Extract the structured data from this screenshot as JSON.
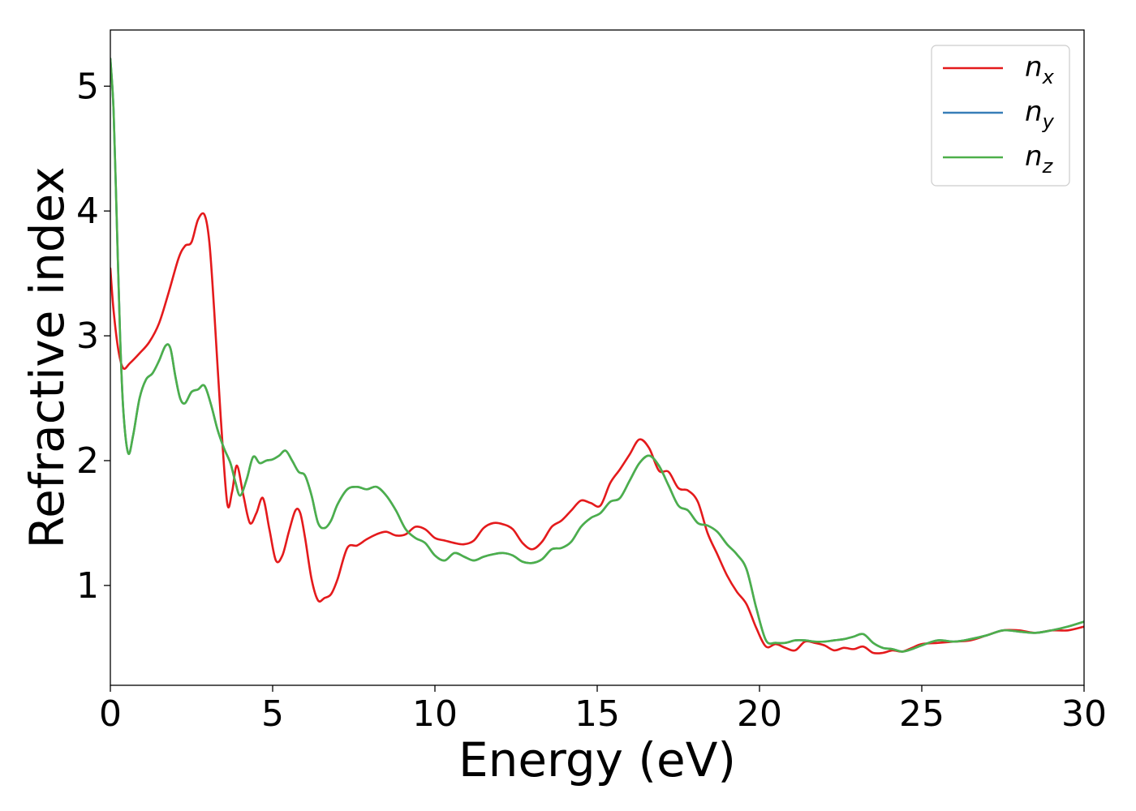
{
  "chart_data": {
    "type": "line",
    "xlabel": "Energy (eV)",
    "ylabel": "Refractive index",
    "xlim": [
      0,
      30
    ],
    "ylim": [
      0.2,
      5.45
    ],
    "xticks": [
      0,
      5,
      10,
      15,
      20,
      25,
      30
    ],
    "yticks": [
      1,
      2,
      3,
      4,
      5
    ],
    "grid": false,
    "legend_position": "top-right",
    "series": [
      {
        "name": "x",
        "color": "#e41a1c",
        "x": [
          0,
          0.1,
          0.25,
          0.4,
          0.6,
          0.9,
          1.2,
          1.5,
          1.8,
          2.1,
          2.3,
          2.5,
          2.7,
          2.9,
          3.05,
          3.2,
          3.4,
          3.6,
          3.75,
          3.9,
          4.1,
          4.3,
          4.5,
          4.7,
          4.9,
          5.1,
          5.3,
          5.5,
          5.7,
          5.85,
          6.0,
          6.2,
          6.4,
          6.6,
          6.8,
          7.0,
          7.3,
          7.6,
          7.9,
          8.2,
          8.5,
          8.8,
          9.1,
          9.4,
          9.7,
          10.0,
          10.3,
          10.6,
          10.9,
          11.2,
          11.5,
          11.8,
          12.1,
          12.4,
          12.7,
          13.0,
          13.3,
          13.6,
          13.9,
          14.2,
          14.5,
          14.8,
          15.1,
          15.4,
          15.7,
          16.0,
          16.3,
          16.6,
          16.9,
          17.2,
          17.5,
          17.8,
          18.1,
          18.4,
          18.7,
          19.0,
          19.3,
          19.6,
          19.9,
          20.2,
          20.5,
          20.8,
          21.1,
          21.4,
          21.7,
          22.0,
          22.3,
          22.6,
          22.9,
          23.2,
          23.5,
          23.8,
          24.1,
          24.4,
          24.7,
          25.0,
          25.5,
          26.0,
          26.5,
          27.0,
          27.5,
          28.0,
          28.5,
          29.0,
          29.5,
          30.0
        ],
        "values": [
          3.54,
          3.2,
          2.88,
          2.74,
          2.78,
          2.86,
          2.95,
          3.1,
          3.35,
          3.62,
          3.72,
          3.75,
          3.93,
          3.97,
          3.75,
          3.2,
          2.35,
          1.66,
          1.75,
          1.96,
          1.72,
          1.5,
          1.58,
          1.7,
          1.45,
          1.2,
          1.24,
          1.43,
          1.6,
          1.58,
          1.38,
          1.05,
          0.88,
          0.9,
          0.93,
          1.05,
          1.3,
          1.32,
          1.37,
          1.41,
          1.43,
          1.4,
          1.41,
          1.47,
          1.45,
          1.38,
          1.36,
          1.34,
          1.33,
          1.36,
          1.46,
          1.5,
          1.49,
          1.45,
          1.34,
          1.29,
          1.35,
          1.47,
          1.52,
          1.6,
          1.68,
          1.66,
          1.64,
          1.82,
          1.93,
          2.05,
          2.17,
          2.1,
          1.92,
          1.91,
          1.78,
          1.76,
          1.67,
          1.42,
          1.25,
          1.08,
          0.95,
          0.85,
          0.66,
          0.51,
          0.53,
          0.5,
          0.48,
          0.55,
          0.54,
          0.52,
          0.48,
          0.5,
          0.49,
          0.51,
          0.46,
          0.46,
          0.48,
          0.47,
          0.5,
          0.53,
          0.54,
          0.55,
          0.56,
          0.6,
          0.64,
          0.64,
          0.62,
          0.64,
          0.64,
          0.67
        ]
      },
      {
        "name": "y",
        "color": "#377eb8",
        "x": [
          0,
          0.1,
          0.2,
          0.3,
          0.4,
          0.55,
          0.7,
          0.9,
          1.1,
          1.3,
          1.5,
          1.7,
          1.85,
          2.0,
          2.15,
          2.3,
          2.5,
          2.7,
          2.9,
          3.1,
          3.3,
          3.5,
          3.7,
          3.85,
          4.0,
          4.2,
          4.4,
          4.6,
          4.8,
          5.0,
          5.2,
          5.4,
          5.6,
          5.8,
          6.0,
          6.2,
          6.4,
          6.6,
          6.8,
          7.0,
          7.3,
          7.6,
          7.9,
          8.2,
          8.5,
          8.8,
          9.1,
          9.4,
          9.7,
          10.0,
          10.3,
          10.6,
          10.9,
          11.2,
          11.5,
          11.8,
          12.1,
          12.4,
          12.7,
          13.0,
          13.3,
          13.6,
          13.9,
          14.2,
          14.5,
          14.8,
          15.1,
          15.4,
          15.7,
          16.0,
          16.3,
          16.6,
          16.9,
          17.2,
          17.5,
          17.8,
          18.1,
          18.4,
          18.7,
          19.0,
          19.3,
          19.6,
          19.9,
          20.2,
          20.5,
          20.8,
          21.1,
          21.4,
          21.7,
          22.0,
          22.3,
          22.6,
          22.9,
          23.2,
          23.5,
          23.8,
          24.1,
          24.4,
          24.7,
          25.0,
          25.5,
          26.0,
          26.5,
          27.0,
          27.5,
          28.0,
          28.5,
          29.0,
          29.5,
          30.0
        ],
        "values": [
          5.22,
          4.8,
          3.9,
          3.0,
          2.4,
          2.06,
          2.2,
          2.5,
          2.65,
          2.7,
          2.8,
          2.92,
          2.9,
          2.68,
          2.5,
          2.46,
          2.55,
          2.57,
          2.6,
          2.45,
          2.25,
          2.1,
          1.98,
          1.83,
          1.72,
          1.85,
          2.03,
          1.98,
          2.0,
          2.01,
          2.04,
          2.08,
          2.0,
          1.91,
          1.88,
          1.72,
          1.5,
          1.46,
          1.52,
          1.65,
          1.77,
          1.79,
          1.77,
          1.79,
          1.72,
          1.6,
          1.45,
          1.38,
          1.34,
          1.24,
          1.2,
          1.26,
          1.23,
          1.2,
          1.23,
          1.25,
          1.26,
          1.24,
          1.19,
          1.18,
          1.21,
          1.29,
          1.3,
          1.35,
          1.47,
          1.54,
          1.58,
          1.67,
          1.7,
          1.84,
          1.98,
          2.04,
          1.96,
          1.8,
          1.64,
          1.6,
          1.5,
          1.48,
          1.43,
          1.33,
          1.25,
          1.13,
          0.82,
          0.56,
          0.54,
          0.54,
          0.56,
          0.56,
          0.55,
          0.55,
          0.56,
          0.57,
          0.59,
          0.61,
          0.54,
          0.5,
          0.49,
          0.47,
          0.49,
          0.52,
          0.56,
          0.55,
          0.57,
          0.6,
          0.64,
          0.63,
          0.62,
          0.64,
          0.67,
          0.71
        ]
      },
      {
        "name": "z",
        "color": "#4daf4a",
        "x": [
          0,
          0.1,
          0.2,
          0.3,
          0.4,
          0.55,
          0.7,
          0.9,
          1.1,
          1.3,
          1.5,
          1.7,
          1.85,
          2.0,
          2.15,
          2.3,
          2.5,
          2.7,
          2.9,
          3.1,
          3.3,
          3.5,
          3.7,
          3.85,
          4.0,
          4.2,
          4.4,
          4.6,
          4.8,
          5.0,
          5.2,
          5.4,
          5.6,
          5.8,
          6.0,
          6.2,
          6.4,
          6.6,
          6.8,
          7.0,
          7.3,
          7.6,
          7.9,
          8.2,
          8.5,
          8.8,
          9.1,
          9.4,
          9.7,
          10.0,
          10.3,
          10.6,
          10.9,
          11.2,
          11.5,
          11.8,
          12.1,
          12.4,
          12.7,
          13.0,
          13.3,
          13.6,
          13.9,
          14.2,
          14.5,
          14.8,
          15.1,
          15.4,
          15.7,
          16.0,
          16.3,
          16.6,
          16.9,
          17.2,
          17.5,
          17.8,
          18.1,
          18.4,
          18.7,
          19.0,
          19.3,
          19.6,
          19.9,
          20.2,
          20.5,
          20.8,
          21.1,
          21.4,
          21.7,
          22.0,
          22.3,
          22.6,
          22.9,
          23.2,
          23.5,
          23.8,
          24.1,
          24.4,
          24.7,
          25.0,
          25.5,
          26.0,
          26.5,
          27.0,
          27.5,
          28.0,
          28.5,
          29.0,
          29.5,
          30.0
        ],
        "values": [
          5.22,
          4.8,
          3.9,
          3.0,
          2.4,
          2.06,
          2.2,
          2.5,
          2.65,
          2.7,
          2.8,
          2.92,
          2.9,
          2.68,
          2.5,
          2.46,
          2.55,
          2.57,
          2.6,
          2.45,
          2.25,
          2.1,
          1.98,
          1.83,
          1.72,
          1.85,
          2.03,
          1.98,
          2.0,
          2.01,
          2.04,
          2.08,
          2.0,
          1.91,
          1.88,
          1.72,
          1.5,
          1.46,
          1.52,
          1.65,
          1.77,
          1.79,
          1.77,
          1.79,
          1.72,
          1.6,
          1.45,
          1.38,
          1.34,
          1.24,
          1.2,
          1.26,
          1.23,
          1.2,
          1.23,
          1.25,
          1.26,
          1.24,
          1.19,
          1.18,
          1.21,
          1.29,
          1.3,
          1.35,
          1.47,
          1.54,
          1.58,
          1.67,
          1.7,
          1.84,
          1.98,
          2.04,
          1.96,
          1.8,
          1.64,
          1.6,
          1.5,
          1.48,
          1.43,
          1.33,
          1.25,
          1.13,
          0.82,
          0.56,
          0.54,
          0.54,
          0.56,
          0.56,
          0.55,
          0.55,
          0.56,
          0.57,
          0.59,
          0.61,
          0.54,
          0.5,
          0.49,
          0.47,
          0.49,
          0.52,
          0.56,
          0.55,
          0.57,
          0.6,
          0.64,
          0.63,
          0.62,
          0.64,
          0.67,
          0.71
        ]
      }
    ],
    "legend": [
      {
        "symbol": "n",
        "subscript": "x",
        "color": "#e41a1c"
      },
      {
        "symbol": "n",
        "subscript": "y",
        "color": "#377eb8"
      },
      {
        "symbol": "n",
        "subscript": "z",
        "color": "#4daf4a"
      }
    ]
  }
}
